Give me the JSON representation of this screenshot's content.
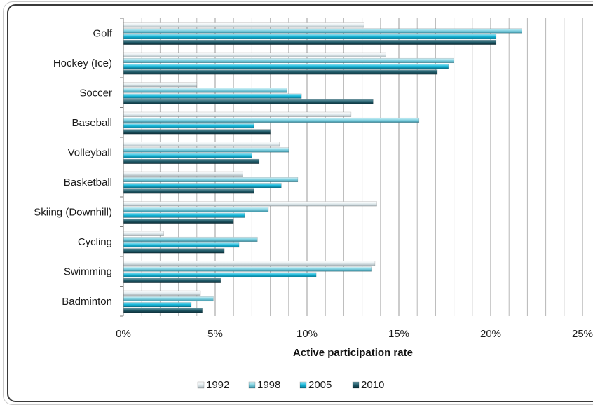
{
  "chart_data": {
    "type": "bar",
    "orientation": "horizontal",
    "title": "",
    "xlabel": "Active participation rate",
    "ylabel": "",
    "xlim": [
      0,
      25
    ],
    "x_ticks": [
      "0%",
      "5%",
      "10%",
      "15%",
      "20%",
      "25%"
    ],
    "grid": "vertical",
    "legend_position": "bottom",
    "categories": [
      "Golf",
      "Hockey (Ice)",
      "Soccer",
      "Baseball",
      "Volleyball",
      "Basketball",
      "Skiing (Downhill)",
      "Cycling",
      "Swimming",
      "Badminton"
    ],
    "series": [
      {
        "name": "1992",
        "color": "#dfe8ec",
        "values": [
          13.1,
          14.3,
          4.0,
          12.4,
          8.5,
          6.5,
          13.8,
          2.2,
          13.7,
          4.2
        ]
      },
      {
        "name": "1998",
        "color": "#7fd0e0",
        "values": [
          21.7,
          18.0,
          8.9,
          16.1,
          9.0,
          9.5,
          7.9,
          7.3,
          13.5,
          4.9
        ]
      },
      {
        "name": "2005",
        "color": "#16b6d8",
        "values": [
          20.3,
          17.7,
          9.7,
          7.1,
          7.0,
          8.6,
          6.6,
          6.3,
          10.5,
          3.7
        ]
      },
      {
        "name": "2010",
        "color": "#1f5a68",
        "values": [
          20.3,
          17.1,
          13.6,
          8.0,
          7.4,
          7.1,
          6.0,
          5.5,
          5.3,
          4.3
        ]
      }
    ]
  }
}
